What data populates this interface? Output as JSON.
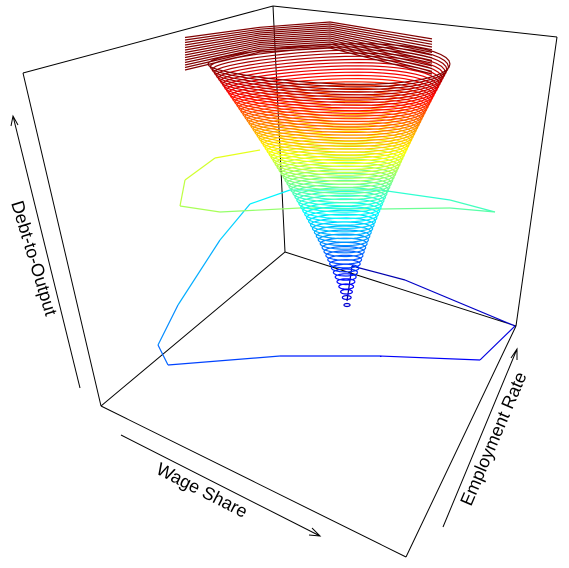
{
  "chart_data": {
    "type": "line",
    "plot_kind": "3d-perspective-trajectory",
    "title": "",
    "xlabel": "Wage Share",
    "ylabel": "Employment Rate",
    "zlabel": "Debt-to-Output",
    "grid": false,
    "legend": "none",
    "colormap": "jet (blue at start of trajectory to red at end)",
    "colors": {
      "box": "#000000",
      "start": "#0000cc",
      "mid": "#00ccff",
      "late": "#ffff00",
      "end": "#cc0000"
    },
    "series": [
      {
        "description": "Keen-model style trajectory spiralling outward from a point near the back corner while debt-to-output rises; colour encodes time"
      }
    ]
  }
}
